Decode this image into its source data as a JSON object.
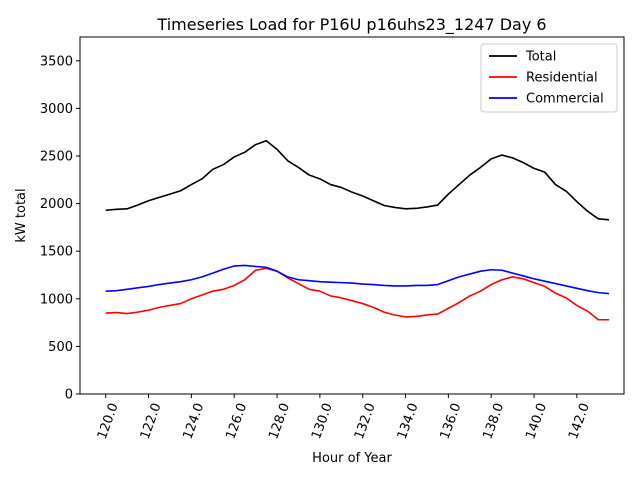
{
  "chart_data": {
    "type": "line",
    "title": "Timeseries Load for P16U p16uhs23_1247  Day 6",
    "xlabel": "Hour of Year",
    "ylabel": "kW total",
    "xlim": [
      118.8,
      144.2
    ],
    "ylim": [
      0,
      3750
    ],
    "xticks": [
      120,
      122,
      124,
      126,
      128,
      130,
      132,
      134,
      136,
      138,
      140,
      142
    ],
    "xtick_labels": [
      "120.0",
      "122.0",
      "124.0",
      "126.0",
      "128.0",
      "130.0",
      "132.0",
      "134.0",
      "136.0",
      "138.0",
      "140.0",
      "142.0"
    ],
    "yticks": [
      0,
      500,
      1000,
      1500,
      2000,
      2500,
      3000,
      3500
    ],
    "ytick_labels": [
      "0",
      "500",
      "1000",
      "1500",
      "2000",
      "2500",
      "3000",
      "3500"
    ],
    "legend_position": "top-right",
    "x": [
      120.0,
      120.5,
      121.0,
      121.5,
      122.0,
      122.5,
      123.0,
      123.5,
      124.0,
      124.5,
      125.0,
      125.5,
      126.0,
      126.5,
      127.0,
      127.5,
      128.0,
      128.5,
      129.0,
      129.5,
      130.0,
      130.5,
      131.0,
      131.5,
      132.0,
      132.5,
      133.0,
      133.5,
      134.0,
      134.5,
      135.0,
      135.5,
      136.0,
      136.5,
      137.0,
      137.5,
      138.0,
      138.5,
      139.0,
      139.5,
      140.0,
      140.5,
      141.0,
      141.5,
      142.0,
      142.5,
      143.0,
      143.5
    ],
    "series": [
      {
        "name": "Total",
        "color": "#000000",
        "values": [
          1930,
          1940,
          1945,
          1985,
          2030,
          2065,
          2100,
          2135,
          2200,
          2260,
          2360,
          2410,
          2490,
          2540,
          2620,
          2660,
          2570,
          2450,
          2380,
          2300,
          2260,
          2200,
          2170,
          2120,
          2080,
          2030,
          1980,
          1960,
          1945,
          1950,
          1965,
          1985,
          2100,
          2200,
          2300,
          2380,
          2470,
          2510,
          2480,
          2430,
          2370,
          2330,
          2200,
          2130,
          2020,
          1920,
          1840,
          1830
        ]
      },
      {
        "name": "Residential",
        "color": "#ff0000",
        "values": [
          850,
          855,
          845,
          860,
          880,
          910,
          930,
          950,
          1000,
          1040,
          1080,
          1100,
          1140,
          1200,
          1300,
          1320,
          1290,
          1220,
          1160,
          1100,
          1080,
          1030,
          1010,
          980,
          950,
          910,
          860,
          830,
          810,
          815,
          830,
          840,
          900,
          960,
          1030,
          1080,
          1150,
          1200,
          1230,
          1210,
          1170,
          1130,
          1060,
          1010,
          930,
          870,
          780,
          780
        ]
      },
      {
        "name": "Commercial",
        "color": "#0000ff",
        "values": [
          1080,
          1085,
          1100,
          1115,
          1130,
          1150,
          1165,
          1180,
          1200,
          1230,
          1270,
          1310,
          1345,
          1350,
          1340,
          1330,
          1290,
          1230,
          1200,
          1190,
          1180,
          1175,
          1170,
          1165,
          1155,
          1150,
          1140,
          1135,
          1135,
          1140,
          1140,
          1150,
          1190,
          1230,
          1260,
          1290,
          1305,
          1300,
          1270,
          1240,
          1210,
          1185,
          1160,
          1135,
          1110,
          1085,
          1065,
          1055
        ]
      }
    ]
  }
}
